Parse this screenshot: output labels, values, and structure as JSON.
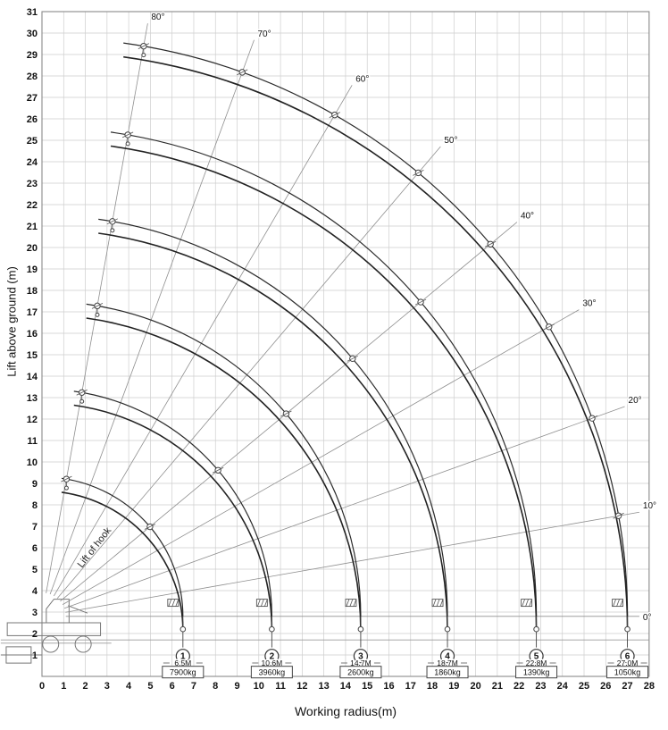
{
  "chart_data": {
    "type": "line",
    "xlabel": "Working radius(m)",
    "ylabel": "Lift above ground (m)",
    "annotation": "Lift of hook",
    "xlim": [
      0,
      28
    ],
    "ylim": [
      0,
      31
    ],
    "grid": true,
    "x_ticks": [
      0,
      1,
      2,
      3,
      4,
      5,
      6,
      7,
      8,
      9,
      10,
      11,
      12,
      13,
      14,
      15,
      16,
      17,
      18,
      19,
      20,
      21,
      22,
      23,
      24,
      25,
      26,
      27,
      28
    ],
    "y_ticks": [
      1,
      2,
      3,
      4,
      5,
      6,
      7,
      8,
      9,
      10,
      11,
      12,
      13,
      14,
      15,
      16,
      17,
      18,
      19,
      20,
      21,
      22,
      23,
      24,
      25,
      26,
      27,
      28,
      29,
      30,
      31
    ],
    "pivot": {
      "x": 0,
      "y": 2.8,
      "hook_drop": 0.65
    },
    "angle_lines_deg": [
      0,
      10,
      20,
      30,
      40,
      50,
      60,
      70,
      80
    ],
    "angle_labels": [
      "0°",
      "10°",
      "20°",
      "30°",
      "40°",
      "50°",
      "60°",
      "70°",
      "80°"
    ],
    "arc_span_deg": [
      0,
      82
    ],
    "booms": [
      {
        "no": "1",
        "length_m": 6.5,
        "length_label": "6.5M",
        "capacity_label": "7900kg"
      },
      {
        "no": "2",
        "length_m": 10.6,
        "length_label": "10.6M",
        "capacity_label": "3960kg"
      },
      {
        "no": "3",
        "length_m": 14.7,
        "length_label": "14.7M",
        "capacity_label": "2600kg"
      },
      {
        "no": "4",
        "length_m": 18.7,
        "length_label": "18.7M",
        "capacity_label": "1860kg"
      },
      {
        "no": "5",
        "length_m": 22.8,
        "length_label": "22.8M",
        "capacity_label": "1390kg"
      },
      {
        "no": "6",
        "length_m": 27.0,
        "length_label": "27.0M",
        "capacity_label": "1050kg"
      }
    ],
    "colors": {
      "grid": "#cecece",
      "curve": "#2b2b2b",
      "angle_line": "#8f8f8f",
      "text": "#111111",
      "background": "#ffffff"
    }
  }
}
